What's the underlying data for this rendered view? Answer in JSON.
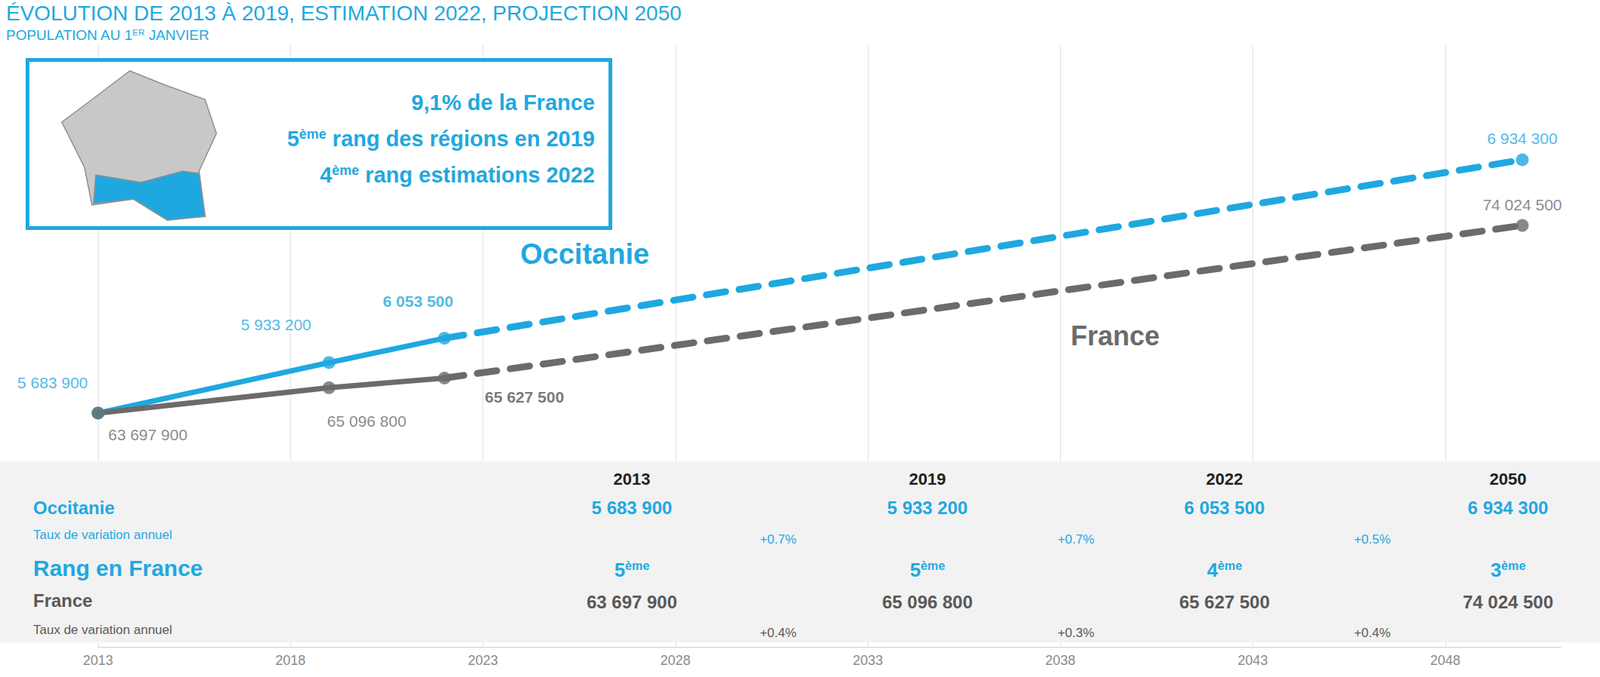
{
  "chart_data": {
    "type": "line",
    "title": "ÉVOLUTION DE 2013 À 2019, ESTIMATION 2022, PROJECTION 2050",
    "subtitle": "POPULATION AU 1ER JANVIER",
    "annotations": [
      "9,1% de la France",
      "5ème rang des régions en 2019",
      "4ème rang estimations 2022"
    ],
    "x": [
      2013,
      2019,
      2022,
      2050
    ],
    "xlim": [
      2013,
      2051
    ],
    "xticks": [
      2013,
      2018,
      2023,
      2028,
      2033,
      2038,
      2043,
      2048
    ],
    "ylim": [
      4530000,
      7500000
    ],
    "y2lim": [
      50840000,
      83940000
    ],
    "grid": true,
    "tick_labels": "x",
    "data_labels": true,
    "marker": "circle",
    "series": [
      {
        "name": "Occitanie",
        "color": "#1fa8e0",
        "values": [
          5683900,
          5933200,
          6053500,
          6934300
        ],
        "value_labels": [
          "5 683 900",
          "5 933 200",
          "6 053 500",
          "6 934 300"
        ],
        "line_style": [
          "solid",
          "solid",
          "dashed"
        ],
        "annual_rates": [
          "+0.7%",
          "+0.7%",
          "+0.5%"
        ]
      },
      {
        "name": "France",
        "color": "#6b6b6b",
        "axis": "y2",
        "values": [
          63697900,
          65096800,
          65627500,
          74024500
        ],
        "value_labels": [
          "63 697 900",
          "65 096 800",
          "65 627 500",
          "74 024 500"
        ],
        "line_style": [
          "solid",
          "solid",
          "dashed"
        ],
        "annual_rates": [
          "+0.4%",
          "+0.3%",
          "+0.4%"
        ]
      }
    ],
    "table": {
      "rate_label": "Taux de variation annuel",
      "rank_label": "Rang en France",
      "ranks": [
        "5ème",
        "5ème",
        "4ème",
        "3ème"
      ]
    }
  }
}
